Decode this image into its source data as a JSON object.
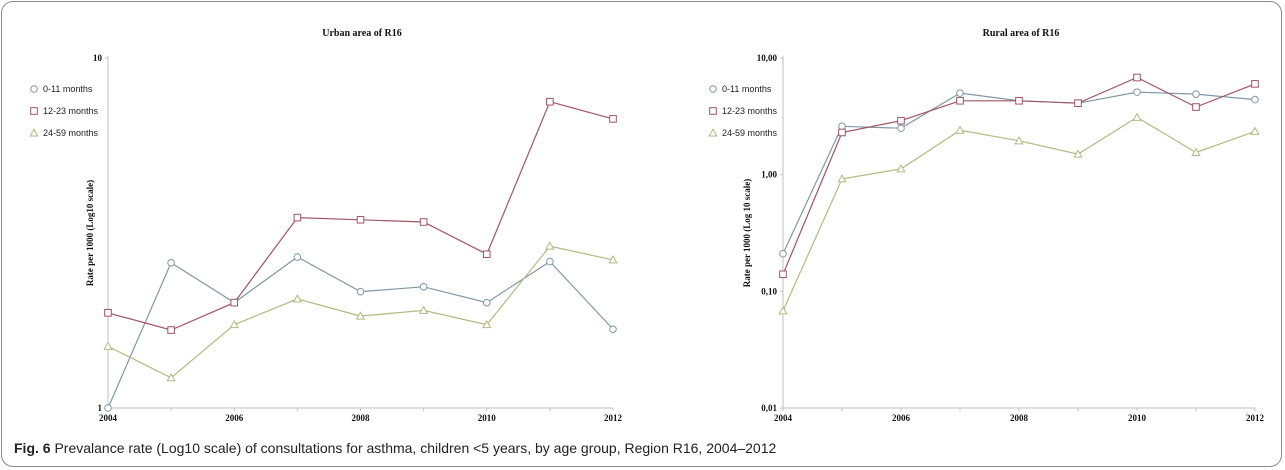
{
  "caption": {
    "label": "Fig. 6",
    "text": "Prevalance rate (Log10 scale) of consultations for asthma, children <5 years, by age group, Region R16, 2004–2012"
  },
  "colors": {
    "series_0_11": "#7e98a6",
    "series_12_23": "#a05563",
    "series_24_59": "#b3b982",
    "axis": "#c0c0c0"
  },
  "chart_data": [
    {
      "type": "line",
      "title": "Urban area of R16",
      "xlabel": "",
      "ylabel": "Rate per 1000 (Log10 scale)",
      "log_y": true,
      "ylim": [
        1,
        10
      ],
      "y_ticks": [
        1,
        10
      ],
      "y_tick_labels": [
        "1",
        "10"
      ],
      "x": [
        2004,
        2005,
        2006,
        2007,
        2008,
        2009,
        2010,
        2011,
        2012
      ],
      "x_ticks": [
        2004,
        2006,
        2008,
        2010,
        2012
      ],
      "x_tick_labels": [
        "2004",
        "2006",
        "2008",
        "2010",
        "2012"
      ],
      "legend_position": "top-left",
      "series": [
        {
          "name": "0-11 months",
          "marker": "circle",
          "color": "#7e98a6",
          "values": [
            1.0,
            2.6,
            2.0,
            2.7,
            2.15,
            2.22,
            2.0,
            2.62,
            1.68
          ]
        },
        {
          "name": "12-23 months",
          "marker": "square",
          "color": "#a05563",
          "values": [
            1.87,
            1.67,
            2.0,
            3.5,
            3.45,
            3.4,
            2.75,
            7.5,
            6.7
          ]
        },
        {
          "name": "24-59 months",
          "marker": "triangle",
          "color": "#b3b982",
          "values": [
            1.5,
            1.22,
            1.73,
            2.05,
            1.83,
            1.9,
            1.73,
            2.9,
            2.65
          ]
        }
      ]
    },
    {
      "type": "line",
      "title": "Rural area of R16",
      "xlabel": "",
      "ylabel": "Rate per 1000 (Log 10 scale)",
      "log_y": true,
      "ylim": [
        0.01,
        10
      ],
      "y_ticks": [
        0.01,
        0.1,
        1,
        10
      ],
      "y_tick_labels": [
        "0,01",
        "0,10",
        "1,00",
        "10,00"
      ],
      "x": [
        2004,
        2005,
        2006,
        2007,
        2008,
        2009,
        2010,
        2011,
        2012
      ],
      "x_ticks": [
        2004,
        2006,
        2008,
        2010,
        2012
      ],
      "x_tick_labels": [
        "2004",
        "2006",
        "2008",
        "2010",
        "2012"
      ],
      "legend_position": "top-left",
      "series": [
        {
          "name": "0-11 months",
          "marker": "circle",
          "color": "#7e98a6",
          "values": [
            0.21,
            2.6,
            2.5,
            5.0,
            4.3,
            4.1,
            5.1,
            4.9,
            4.4
          ]
        },
        {
          "name": "12-23 months",
          "marker": "square",
          "color": "#a05563",
          "values": [
            0.14,
            2.3,
            2.9,
            4.3,
            4.3,
            4.1,
            6.8,
            3.8,
            6.0
          ]
        },
        {
          "name": "24-59 months",
          "marker": "triangle",
          "color": "#b3b982",
          "values": [
            0.068,
            0.92,
            1.12,
            2.4,
            1.95,
            1.5,
            3.1,
            1.55,
            2.35
          ]
        }
      ]
    }
  ]
}
